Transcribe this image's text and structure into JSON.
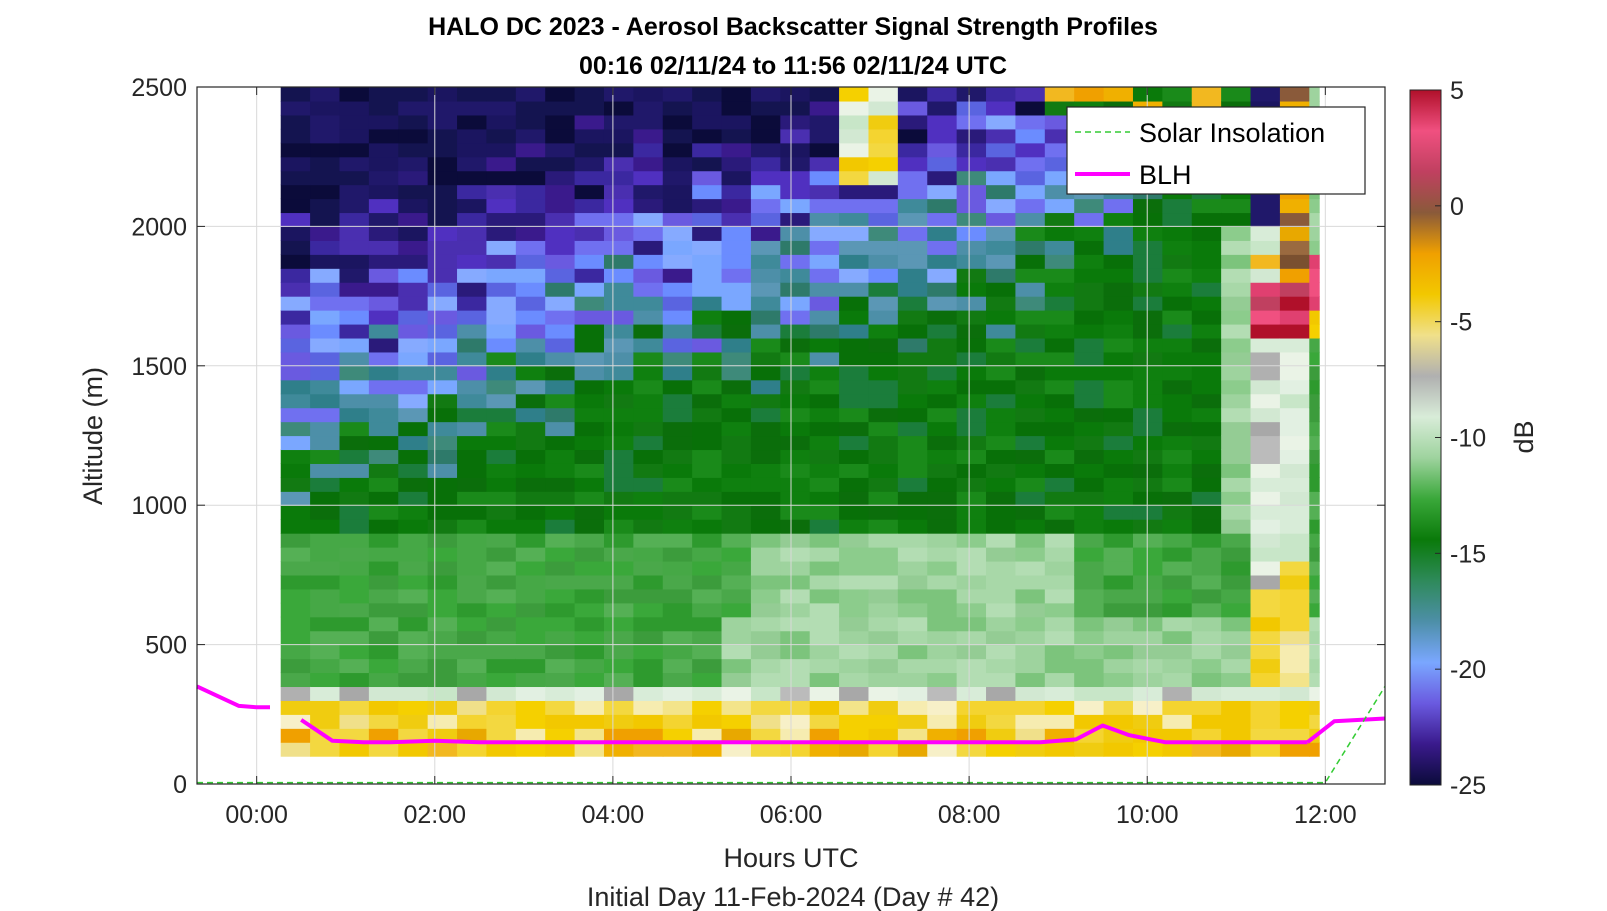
{
  "chart_data": {
    "type": "heatmap",
    "title": "HALO DC 2023 - Aerosol Backscatter Signal Strength Profiles",
    "subtitle": "00:16 02/11/24 to 11:56 02/11/24  UTC",
    "xlabel": "Hours UTC",
    "xlabel2": "Initial Day 11-Feb-2024 (Day # 42)",
    "ylabel": "Altitude (m)",
    "xlim": [
      -0.67,
      12.67
    ],
    "ylim": [
      0,
      2500
    ],
    "x_ticks": [
      0,
      2,
      4,
      6,
      8,
      10,
      12
    ],
    "x_tick_labels": [
      "00:00",
      "02:00",
      "04:00",
      "06:00",
      "08:00",
      "10:00",
      "12:00"
    ],
    "y_ticks": [
      0,
      500,
      1000,
      1500,
      2000,
      2500
    ],
    "y_tick_labels": [
      "0",
      "500",
      "1000",
      "1500",
      "2000",
      "2500"
    ],
    "grid": true,
    "colorbar": {
      "label": "dB",
      "range": [
        -25,
        5
      ],
      "ticks": [
        5,
        0,
        -5,
        -10,
        -15,
        -20,
        -25
      ],
      "tick_labels": [
        "5",
        "0",
        "-5",
        "-10",
        "-15",
        "-20",
        "-25"
      ],
      "colors": [
        "#0b0b3a",
        "#3a1a8c",
        "#6a5ae0",
        "#7aa7ff",
        "#4d8fa8",
        "#2e8a5a",
        "#0a7a0a",
        "#3aa83a",
        "#9ed39e",
        "#d8ecd8",
        "#b0b0b0",
        "#f0e08a",
        "#f2c800",
        "#f0a000",
        "#8a5a3a",
        "#c04060",
        "#f05080",
        "#b0102a"
      ]
    },
    "heatmap": {
      "data_start_hour": 0.27,
      "data_end_hour": 11.93,
      "column_step_hours": 0.33,
      "altitude_bin_m": 50,
      "altitude_start_m": 100
    },
    "legend": {
      "placement": "top-right",
      "entries": [
        "Solar Insolation",
        "BLH"
      ]
    },
    "series": [
      {
        "name": "BLH",
        "color": "#ff00ff",
        "segments": [
          {
            "x": [
              -0.67,
              -0.2,
              0.0,
              0.15
            ],
            "y": [
              350,
              280,
              275,
              275
            ]
          },
          {
            "x": [
              0.5,
              0.85,
              1.2,
              1.5,
              2.0,
              2.5,
              3.0,
              4.0,
              5.0,
              6.0,
              7.0,
              8.0,
              8.8,
              9.2,
              9.5,
              9.8,
              10.2,
              10.5,
              11.0,
              11.5,
              11.8
            ],
            "y": [
              230,
              155,
              150,
              150,
              155,
              150,
              150,
              150,
              150,
              150,
              150,
              150,
              150,
              160,
              210,
              175,
              150,
              150,
              150,
              150,
              150
            ]
          },
          {
            "x": [
              11.8,
              12.1,
              12.67
            ],
            "y": [
              150,
              225,
              235
            ]
          }
        ]
      },
      {
        "name": "Solar Insolation",
        "color": "#33cc33",
        "segments": [
          {
            "x": [
              -0.67,
              12.0,
              12.67
            ],
            "y": [
              5,
              5,
              350
            ]
          }
        ]
      }
    ]
  }
}
